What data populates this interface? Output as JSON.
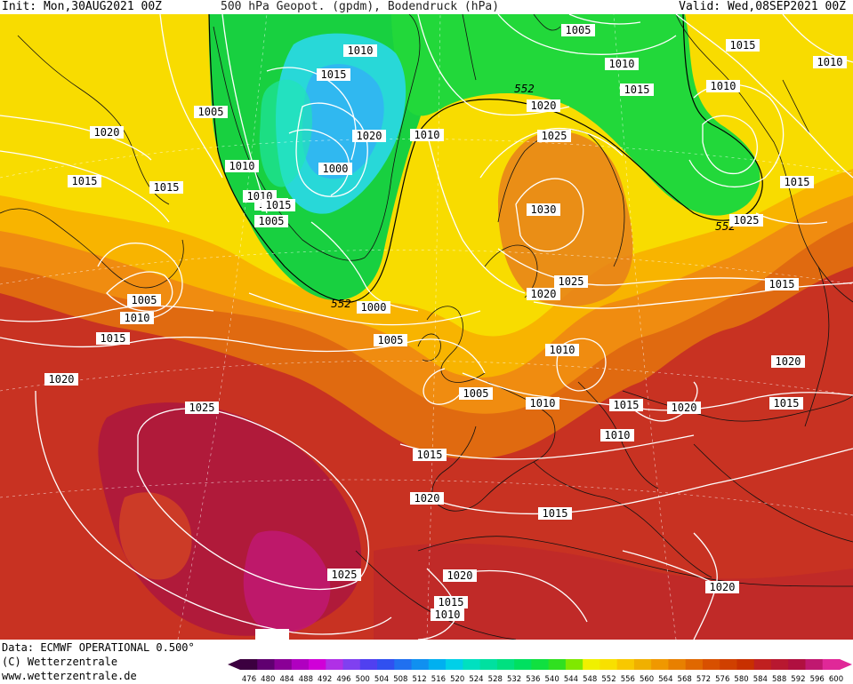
{
  "header": {
    "init": "Init: Mon,30AUG2021 00Z",
    "title": "500 hPa Geopot. (gpdm), Bodendruck (hPa)",
    "valid": "Valid: Wed,08SEP2021 00Z"
  },
  "footer": {
    "data_source": "Data: ECMWF OPERATIONAL 0.500°",
    "copyright": "(C) Wetterzentrale",
    "website": "www.wetterzentrale.de"
  },
  "colorbar": {
    "ticks": [
      476,
      480,
      484,
      488,
      492,
      496,
      500,
      504,
      508,
      512,
      516,
      520,
      524,
      528,
      532,
      536,
      540,
      544,
      548,
      552,
      556,
      560,
      564,
      568,
      572,
      576,
      580,
      584,
      588,
      592,
      596,
      600
    ],
    "colors": [
      "#3c0040",
      "#600070",
      "#8a0096",
      "#b000c0",
      "#d000d8",
      "#b030e6",
      "#8040f0",
      "#5040f0",
      "#3050f0",
      "#2070f0",
      "#1090f0",
      "#00b0f0",
      "#00d0e8",
      "#00e0c0",
      "#00e0a0",
      "#00e080",
      "#00e060",
      "#10e040",
      "#30e020",
      "#80e800",
      "#f0f000",
      "#f8e000",
      "#f8c800",
      "#f0b000",
      "#f09800",
      "#e88000",
      "#e06800",
      "#d85000",
      "#d04000",
      "#c83000",
      "#c02020",
      "#b81830",
      "#b01040",
      "#c01870",
      "#e02898"
    ]
  },
  "isobar_labels": [
    "1010",
    "1005",
    "1010",
    "1015",
    "1015",
    "1010",
    "1005",
    "1020",
    "1010",
    "1015",
    "1010",
    "1005",
    "1020",
    "1010",
    "1000",
    "1015",
    "1010",
    "1020",
    "1015",
    "1015",
    "1015",
    "1005",
    "1015",
    "1010",
    "1005",
    "1025",
    "1030",
    "1020",
    "1025",
    "1000",
    "1005",
    "1010",
    "1025",
    "1005",
    "1010",
    "1015",
    "1020",
    "1010",
    "1015",
    "1020",
    "1020",
    "1025",
    "1015",
    "1020",
    "1015",
    "1020",
    "1025",
    "1015",
    "1010",
    "1015",
    "1020"
  ],
  "contour_552_labels": [
    "552",
    "552",
    "552"
  ]
}
